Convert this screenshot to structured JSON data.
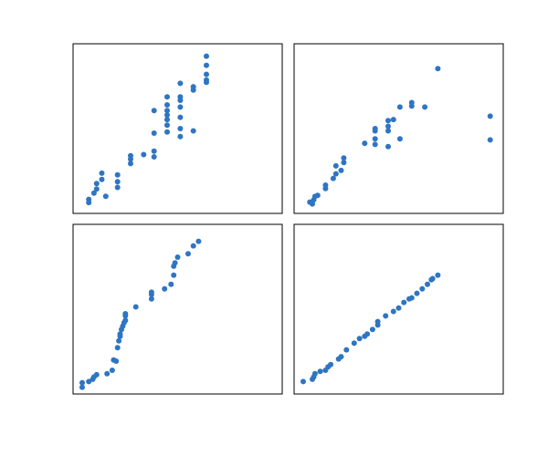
{
  "chart_data": [
    {
      "type": "scatter",
      "color": "#2e75c3",
      "xlim": [
        0.5,
        8.5
      ],
      "ylim": [
        0.3,
        7.8
      ],
      "grid": false,
      "points": [
        [
          1.1,
          0.78
        ],
        [
          1.1,
          0.92
        ],
        [
          1.3,
          1.2
        ],
        [
          1.4,
          1.38
        ],
        [
          1.4,
          1.62
        ],
        [
          1.6,
          1.8
        ],
        [
          1.6,
          2.08
        ],
        [
          1.75,
          1.06
        ],
        [
          2.2,
          1.45
        ],
        [
          2.2,
          1.7
        ],
        [
          2.2,
          2.0
        ],
        [
          2.7,
          2.5
        ],
        [
          2.7,
          2.7
        ],
        [
          2.7,
          2.85
        ],
        [
          3.2,
          2.9
        ],
        [
          3.6,
          2.8
        ],
        [
          3.6,
          3.05
        ],
        [
          3.6,
          3.85
        ],
        [
          3.6,
          4.85
        ],
        [
          4.1,
          3.9
        ],
        [
          4.1,
          4.2
        ],
        [
          4.1,
          4.45
        ],
        [
          4.1,
          4.65
        ],
        [
          4.1,
          4.85
        ],
        [
          4.1,
          5.1
        ],
        [
          4.1,
          5.45
        ],
        [
          4.6,
          3.7
        ],
        [
          4.6,
          4.05
        ],
        [
          4.6,
          4.55
        ],
        [
          4.6,
          5.0
        ],
        [
          4.6,
          5.3
        ],
        [
          4.6,
          5.45
        ],
        [
          4.6,
          6.05
        ],
        [
          5.1,
          3.95
        ],
        [
          5.1,
          5.75
        ],
        [
          5.1,
          5.9
        ],
        [
          5.6,
          6.1
        ],
        [
          5.6,
          6.2
        ],
        [
          5.6,
          6.45
        ],
        [
          5.6,
          6.85
        ],
        [
          5.6,
          7.25
        ]
      ]
    },
    {
      "type": "scatter",
      "color": "#2e75c3",
      "xlim": [
        0.5,
        8.5
      ],
      "ylim": [
        0.3,
        7.8
      ],
      "grid": false,
      "points": [
        [
          1.1,
          0.8
        ],
        [
          1.2,
          0.72
        ],
        [
          1.25,
          0.9
        ],
        [
          1.3,
          1.05
        ],
        [
          1.4,
          1.1
        ],
        [
          1.7,
          1.4
        ],
        [
          1.7,
          1.55
        ],
        [
          2.0,
          1.85
        ],
        [
          2.1,
          2.05
        ],
        [
          2.1,
          2.4
        ],
        [
          2.3,
          2.2
        ],
        [
          2.4,
          2.55
        ],
        [
          2.4,
          2.75
        ],
        [
          3.2,
          3.4
        ],
        [
          3.6,
          3.35
        ],
        [
          3.6,
          3.6
        ],
        [
          3.6,
          3.95
        ],
        [
          3.6,
          4.05
        ],
        [
          4.1,
          3.25
        ],
        [
          4.1,
          3.95
        ],
        [
          4.1,
          4.15
        ],
        [
          4.1,
          4.4
        ],
        [
          4.3,
          4.45
        ],
        [
          4.55,
          3.6
        ],
        [
          4.55,
          5.0
        ],
        [
          5.0,
          5.2
        ],
        [
          5.0,
          5.05
        ],
        [
          5.5,
          5.0
        ],
        [
          6.0,
          6.7
        ],
        [
          8.0,
          4.6
        ],
        [
          8.0,
          3.55
        ]
      ]
    },
    {
      "type": "scatter",
      "color": "#2e75c3",
      "xlim": [
        0.5,
        8.5
      ],
      "ylim": [
        0.3,
        7.8
      ],
      "grid": false,
      "points": [
        [
          0.85,
          0.6
        ],
        [
          0.85,
          0.8
        ],
        [
          1.1,
          0.85
        ],
        [
          1.25,
          0.95
        ],
        [
          1.3,
          1.05
        ],
        [
          1.4,
          1.15
        ],
        [
          1.8,
          1.2
        ],
        [
          2.0,
          1.35
        ],
        [
          2.05,
          1.8
        ],
        [
          2.15,
          1.75
        ],
        [
          2.2,
          2.35
        ],
        [
          2.25,
          2.65
        ],
        [
          2.3,
          2.85
        ],
        [
          2.3,
          2.95
        ],
        [
          2.35,
          3.15
        ],
        [
          2.4,
          3.3
        ],
        [
          2.45,
          3.45
        ],
        [
          2.5,
          3.55
        ],
        [
          2.5,
          3.75
        ],
        [
          2.5,
          3.85
        ],
        [
          2.9,
          4.15
        ],
        [
          3.5,
          4.5
        ],
        [
          3.5,
          4.7
        ],
        [
          3.5,
          4.8
        ],
        [
          4.0,
          4.95
        ],
        [
          4.25,
          5.15
        ],
        [
          4.35,
          5.55
        ],
        [
          4.35,
          5.95
        ],
        [
          4.4,
          6.1
        ],
        [
          4.5,
          6.35
        ],
        [
          4.9,
          6.5
        ],
        [
          5.1,
          6.85
        ],
        [
          5.3,
          7.05
        ]
      ]
    },
    {
      "type": "scatter",
      "color": "#2e75c3",
      "xlim": [
        0.5,
        8.5
      ],
      "ylim": [
        0.3,
        7.8
      ],
      "grid": false,
      "points": [
        [
          0.85,
          0.85
        ],
        [
          1.2,
          0.95
        ],
        [
          1.25,
          1.05
        ],
        [
          1.3,
          1.2
        ],
        [
          1.5,
          1.3
        ],
        [
          1.7,
          1.35
        ],
        [
          1.8,
          1.5
        ],
        [
          1.9,
          1.6
        ],
        [
          2.2,
          1.85
        ],
        [
          2.3,
          1.95
        ],
        [
          2.5,
          2.25
        ],
        [
          2.8,
          2.55
        ],
        [
          3.0,
          2.75
        ],
        [
          3.2,
          2.85
        ],
        [
          3.3,
          2.95
        ],
        [
          3.5,
          3.15
        ],
        [
          3.7,
          3.35
        ],
        [
          3.7,
          3.5
        ],
        [
          4.0,
          3.75
        ],
        [
          4.3,
          3.95
        ],
        [
          4.5,
          4.1
        ],
        [
          4.7,
          4.35
        ],
        [
          4.9,
          4.5
        ],
        [
          5.0,
          4.55
        ],
        [
          5.2,
          4.75
        ],
        [
          5.4,
          4.95
        ],
        [
          5.6,
          5.15
        ],
        [
          5.75,
          5.35
        ],
        [
          5.8,
          5.4
        ],
        [
          6.0,
          5.55
        ]
      ]
    }
  ]
}
